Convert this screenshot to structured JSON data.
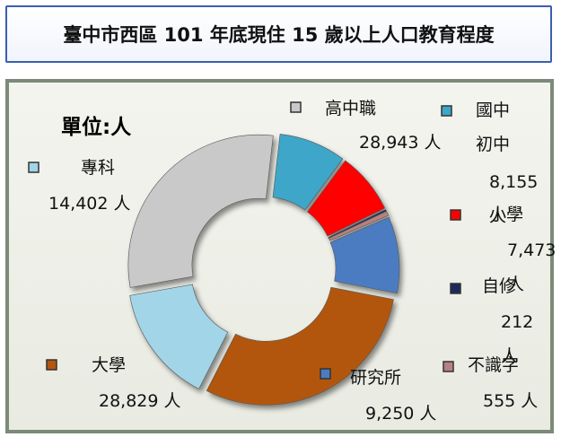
{
  "chart_data": {
    "type": "donut",
    "title": "臺中市西區 101 年底現住 15 歲以上人口教育程度",
    "unit_label": "單位:人",
    "categories": [
      "高中職",
      "國中\n初中",
      "小學",
      "自修",
      "不識字",
      "研究所",
      "大學",
      "專科"
    ],
    "values": [
      28943,
      8155,
      7473,
      212,
      555,
      9250,
      28829,
      14402
    ],
    "value_labels": [
      "28,943 人",
      "8,155 人",
      "7,473 人",
      "212 人",
      "555 人",
      "9,250 人",
      "28,829 人",
      "14,402 人"
    ],
    "colors": [
      "#c9c9c9",
      "#3ea6c9",
      "#ff0000",
      "#1c2b5c",
      "#b88080",
      "#4b7cc2",
      "#b3560f",
      "#a2d5e7"
    ]
  }
}
